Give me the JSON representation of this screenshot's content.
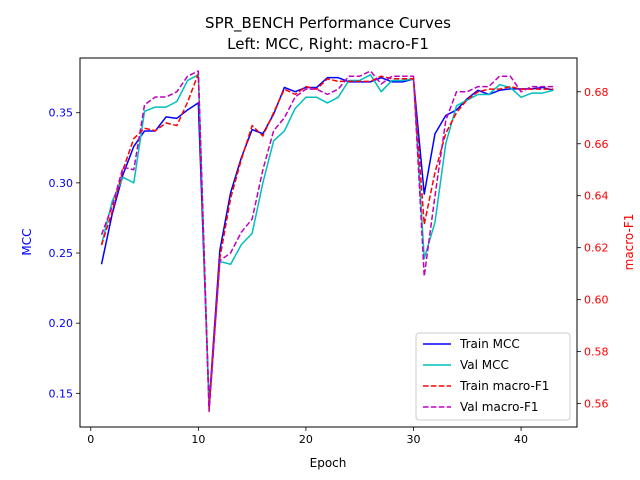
{
  "chart_data": {
    "type": "line",
    "title": "SPR_BENCH Performance Curves",
    "subtitle": "Left: MCC, Right: macro-F1",
    "xlabel": "Epoch",
    "ylabel_left": "MCC",
    "ylabel_right": "macro-F1",
    "xlim": [
      -1,
      45.2
    ],
    "ylim_left": [
      0.126,
      0.389
    ],
    "ylim_right": [
      0.551,
      0.693
    ],
    "x_ticks": [
      0,
      10,
      20,
      30,
      40
    ],
    "y_left_ticks": [
      0.15,
      0.2,
      0.25,
      0.3,
      0.35
    ],
    "y_left_tick_labels": [
      "0.15",
      "0.20",
      "0.25",
      "0.30",
      "0.35"
    ],
    "y_right_ticks": [
      0.56,
      0.58,
      0.6,
      0.62,
      0.64,
      0.66,
      0.68
    ],
    "y_right_tick_labels": [
      "0.56",
      "0.58",
      "0.60",
      "0.62",
      "0.64",
      "0.66",
      "0.68"
    ],
    "grid": false,
    "legend_position": "bottom-right",
    "colors": {
      "left_axis": "#0000ff",
      "right_axis": "#ff0000"
    },
    "x": [
      1,
      2,
      3,
      4,
      5,
      6,
      7,
      8,
      9,
      10,
      11,
      12,
      13,
      14,
      15,
      16,
      17,
      18,
      19,
      20,
      21,
      22,
      23,
      24,
      25,
      26,
      27,
      28,
      29,
      30,
      31,
      32,
      33,
      34,
      35,
      36,
      37,
      38,
      39,
      40,
      41,
      42,
      43
    ],
    "series": [
      {
        "name": "Train MCC",
        "axis": "left",
        "color": "#0000ff",
        "dash": false,
        "values": [
          0.242,
          0.278,
          0.306,
          0.326,
          0.337,
          0.337,
          0.347,
          0.346,
          0.352,
          0.357,
          0.142,
          0.252,
          0.293,
          0.318,
          0.338,
          0.335,
          0.349,
          0.368,
          0.365,
          0.368,
          0.368,
          0.375,
          0.375,
          0.372,
          0.372,
          0.372,
          0.375,
          0.372,
          0.372,
          0.374,
          0.292,
          0.335,
          0.348,
          0.352,
          0.36,
          0.366,
          0.363,
          0.366,
          0.367,
          0.367,
          0.367,
          0.368,
          0.366
        ]
      },
      {
        "name": "Val MCC",
        "axis": "left",
        "color": "#00bfbf",
        "dash": false,
        "values": [
          0.256,
          0.287,
          0.304,
          0.3,
          0.351,
          0.354,
          0.354,
          0.358,
          0.373,
          0.377,
          0.139,
          0.244,
          0.242,
          0.256,
          0.264,
          0.3,
          0.33,
          0.337,
          0.353,
          0.361,
          0.361,
          0.357,
          0.361,
          0.373,
          0.373,
          0.377,
          0.365,
          0.373,
          0.373,
          0.374,
          0.246,
          0.272,
          0.328,
          0.355,
          0.359,
          0.363,
          0.363,
          0.37,
          0.368,
          0.361,
          0.364,
          0.364,
          0.366
        ]
      },
      {
        "name": "Train macro-F1",
        "axis": "right",
        "color": "#ff0000",
        "dash": true,
        "values": [
          0.621,
          0.634,
          0.65,
          0.662,
          0.666,
          0.665,
          0.668,
          0.667,
          0.676,
          0.687,
          0.558,
          0.616,
          0.639,
          0.654,
          0.667,
          0.663,
          0.672,
          0.681,
          0.679,
          0.682,
          0.681,
          0.685,
          0.684,
          0.684,
          0.684,
          0.684,
          0.686,
          0.685,
          0.685,
          0.685,
          0.629,
          0.649,
          0.664,
          0.672,
          0.677,
          0.68,
          0.681,
          0.681,
          0.682,
          0.681,
          0.681,
          0.681,
          0.681
        ]
      },
      {
        "name": "Val macro-F1",
        "axis": "right",
        "color": "#bf00bf",
        "dash": true,
        "values": [
          0.625,
          0.636,
          0.651,
          0.65,
          0.675,
          0.678,
          0.678,
          0.68,
          0.686,
          0.688,
          0.557,
          0.615,
          0.618,
          0.626,
          0.631,
          0.65,
          0.665,
          0.67,
          0.678,
          0.681,
          0.681,
          0.679,
          0.681,
          0.686,
          0.686,
          0.688,
          0.683,
          0.686,
          0.686,
          0.686,
          0.609,
          0.64,
          0.669,
          0.68,
          0.68,
          0.682,
          0.682,
          0.686,
          0.686,
          0.68,
          0.682,
          0.682,
          0.682
        ]
      }
    ]
  }
}
